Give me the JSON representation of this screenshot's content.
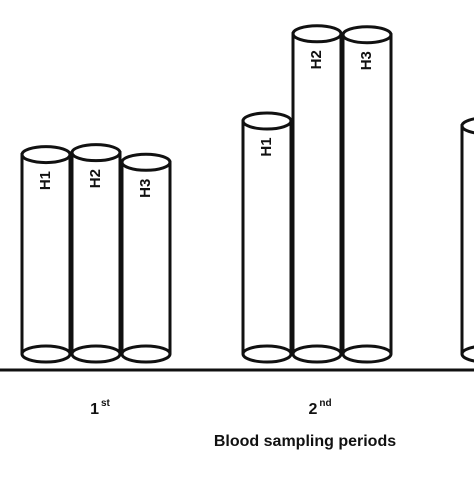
{
  "chart_data": {
    "type": "bar",
    "style": "3d-cylinder",
    "title": "",
    "xlabel": "Blood sampling periods",
    "ylabel": "",
    "grid": false,
    "ylim": [
      0,
      340
    ],
    "groups": [
      {
        "label": "1",
        "suffix": "st",
        "bars": [
          {
            "name": "H1",
            "value": 208
          },
          {
            "name": "H2",
            "value": 210
          },
          {
            "name": "H3",
            "value": 200
          }
        ]
      },
      {
        "label": "2",
        "suffix": "nd",
        "bars": [
          {
            "name": "H1",
            "value": 243
          },
          {
            "name": "H2",
            "value": 334
          },
          {
            "name": "H3",
            "value": 333
          }
        ]
      },
      {
        "label": "",
        "suffix": "",
        "bars": [
          {
            "name": "",
            "value": 238
          }
        ]
      }
    ]
  }
}
